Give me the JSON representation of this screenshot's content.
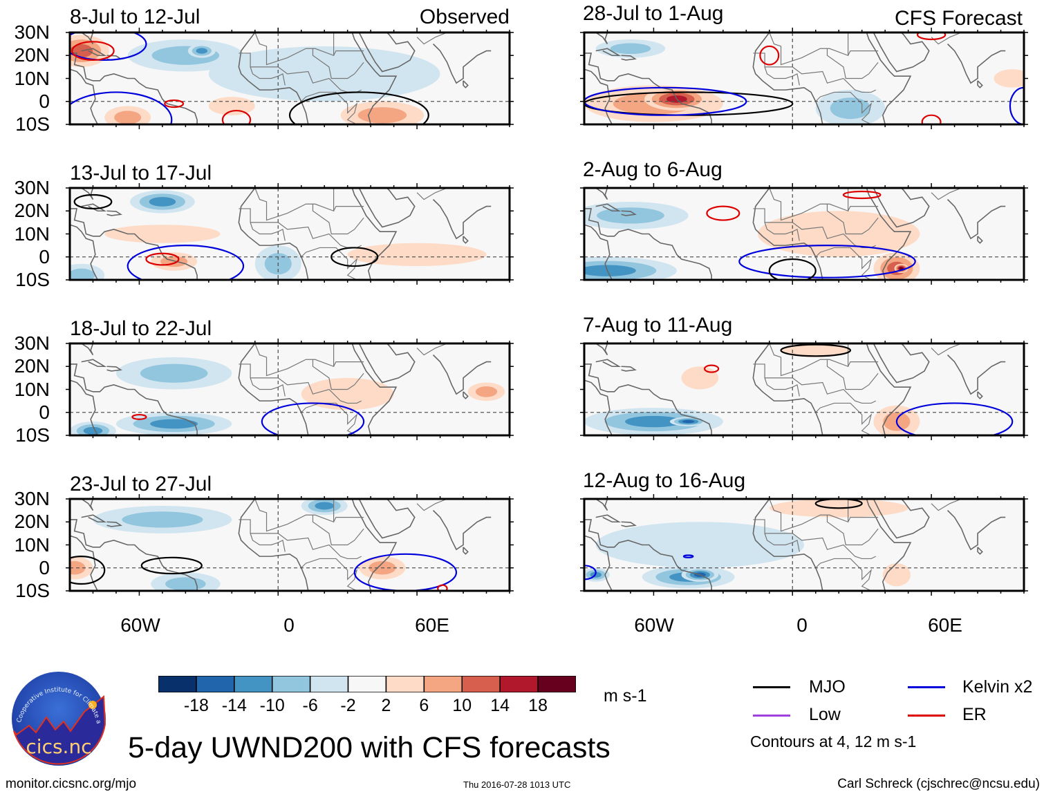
{
  "figure": {
    "main_title": "5-day UWND200 with CFS forecasts",
    "units": "m s-1",
    "source_url": "monitor.cicsnc.org/mjo",
    "timestamp": "Thu 2016-07-28 1013 UTC",
    "author": "Carl Schreck (cjschrec@ncsu.edu)",
    "logo": {
      "ring_text": "Cooperative Institute for Climate and Satellites",
      "name": "cics.nc"
    },
    "contour_note": "Contours at 4, 12 m s-1"
  },
  "chart_data": {
    "type": "heatmap",
    "title": "5-day UWND200 with CFS forecasts",
    "variable": "200-hPa zonal wind anomaly",
    "units": "m s-1",
    "xlabel": "",
    "ylabel": "",
    "x_range": [
      "90W",
      "100E"
    ],
    "y_range": [
      "10S",
      "30N"
    ],
    "x_ticks": [
      "60W",
      "0",
      "60E"
    ],
    "y_ticks": [
      "30N",
      "20N",
      "10N",
      "0",
      "10S"
    ],
    "grid": false,
    "equator_line": "dashed",
    "prime_meridian_line": "dashed",
    "colorbar": {
      "levels": [
        -18,
        -14,
        -10,
        -6,
        -2,
        2,
        6,
        10,
        14,
        18
      ],
      "colors": [
        "#08306b",
        "#2166ac",
        "#4393c3",
        "#92c5de",
        "#d1e5f0",
        "#f7f7f7",
        "#fddbc7",
        "#f4a582",
        "#d6604d",
        "#b2182b",
        "#67001f"
      ],
      "placement": "bottom"
    },
    "legend": {
      "placement": "bottom-right",
      "entries": [
        {
          "label": "MJO",
          "color": "#000000"
        },
        {
          "label": "Kelvin x2",
          "color": "#0000dd"
        },
        {
          "label": "Low",
          "color": "#a040e0"
        },
        {
          "label": "ER",
          "color": "#dd0000"
        }
      ]
    },
    "contour_levels": [
      4,
      12
    ],
    "columns": [
      {
        "tag": "Observed",
        "panels": [
          "8-Jul to 12-Jul",
          "13-Jul to 17-Jul",
          "18-Jul to 22-Jul",
          "23-Jul to 27-Jul"
        ]
      },
      {
        "tag": "CFS Forecast",
        "panels": [
          "28-Jul to 1-Aug",
          "2-Aug to 6-Aug",
          "7-Aug to 11-Aug",
          "12-Aug to 16-Aug"
        ]
      }
    ],
    "panels": [
      {
        "period": "8-Jul to 12-Jul",
        "source": "Observed",
        "anomalies": [
          {
            "lon": -85,
            "lat": 22,
            "rlon": 12,
            "rlat": 7,
            "value": 12
          },
          {
            "lon": -40,
            "lat": 20,
            "rlon": 25,
            "rlat": 7,
            "value": -8
          },
          {
            "lon": -33,
            "lat": 22,
            "rlon": 6,
            "rlat": 3,
            "value": -12
          },
          {
            "lon": -65,
            "lat": -7,
            "rlon": 10,
            "rlat": 5,
            "value": 7
          },
          {
            "lon": 45,
            "lat": -6,
            "rlon": 18,
            "rlat": 6,
            "value": 7
          },
          {
            "lon": 20,
            "lat": 12,
            "rlon": 50,
            "rlat": 12,
            "value": -3
          },
          {
            "lon": -20,
            "lat": -2,
            "rlon": 10,
            "rlat": 4,
            "value": 3
          }
        ],
        "contours": [
          {
            "wave": "Kelvin x2",
            "lon": -75,
            "lat": 25,
            "rlon": 18,
            "rlat": 7
          },
          {
            "wave": "Kelvin x2",
            "lon": -70,
            "lat": -8,
            "rlon": 24,
            "rlat": 12
          },
          {
            "wave": "ER",
            "lon": -80,
            "lat": 22,
            "rlon": 9,
            "rlat": 4
          },
          {
            "wave": "ER",
            "lon": -45,
            "lat": -1,
            "rlon": 4,
            "rlat": 1.5
          },
          {
            "wave": "ER",
            "lon": -18,
            "lat": -8,
            "rlon": 6,
            "rlat": 4
          },
          {
            "wave": "MJO",
            "lon": 35,
            "lat": -6,
            "rlon": 30,
            "rlat": 10
          }
        ]
      },
      {
        "period": "13-Jul to 17-Jul",
        "source": "Observed",
        "anomalies": [
          {
            "lon": -50,
            "lat": 24,
            "rlon": 14,
            "rlat": 5,
            "value": -11
          },
          {
            "lon": -45,
            "lat": -2,
            "rlon": 10,
            "rlat": 4,
            "value": 9
          },
          {
            "lon": -85,
            "lat": -8,
            "rlon": 10,
            "rlat": 5,
            "value": -8
          },
          {
            "lon": 0,
            "lat": -3,
            "rlon": 10,
            "rlat": 8,
            "value": -6
          },
          {
            "lon": 60,
            "lat": 1,
            "rlon": 30,
            "rlat": 5,
            "value": 4
          },
          {
            "lon": -50,
            "lat": 10,
            "rlon": 25,
            "rlat": 4,
            "value": 3
          }
        ],
        "contours": [
          {
            "wave": "MJO",
            "lon": -80,
            "lat": 24,
            "rlon": 8,
            "rlat": 3
          },
          {
            "wave": "Kelvin x2",
            "lon": -40,
            "lat": -4,
            "rlon": 25,
            "rlat": 9
          },
          {
            "wave": "ER",
            "lon": -50,
            "lat": -1,
            "rlon": 7,
            "rlat": 2.5
          },
          {
            "wave": "MJO",
            "lon": 33,
            "lat": 0,
            "rlon": 10,
            "rlat": 4
          }
        ]
      },
      {
        "period": "18-Jul to 22-Jul",
        "source": "Observed",
        "anomalies": [
          {
            "lon": -45,
            "lat": 17,
            "rlon": 25,
            "rlat": 7,
            "value": -6
          },
          {
            "lon": -45,
            "lat": -5,
            "rlon": 25,
            "rlat": 5,
            "value": -10
          },
          {
            "lon": -80,
            "lat": -8,
            "rlon": 10,
            "rlat": 4,
            "value": -12
          },
          {
            "lon": 30,
            "lat": 8,
            "rlon": 20,
            "rlat": 7,
            "value": 3
          },
          {
            "lon": 90,
            "lat": 9,
            "rlon": 8,
            "rlat": 4,
            "value": 6
          }
        ],
        "contours": [
          {
            "wave": "ER",
            "lon": -60,
            "lat": -2,
            "rlon": 3,
            "rlat": 1
          },
          {
            "wave": "Kelvin x2",
            "lon": 15,
            "lat": -4,
            "rlon": 22,
            "rlat": 8
          }
        ]
      },
      {
        "period": "23-Jul to 27-Jul",
        "source": "Observed",
        "anomalies": [
          {
            "lon": -88,
            "lat": 0,
            "rlon": 8,
            "rlat": 5,
            "value": 8
          },
          {
            "lon": -50,
            "lat": 21,
            "rlon": 30,
            "rlat": 6,
            "value": -7
          },
          {
            "lon": -40,
            "lat": -7,
            "rlon": 15,
            "rlat": 5,
            "value": -9
          },
          {
            "lon": 45,
            "lat": 0,
            "rlon": 10,
            "rlat": 5,
            "value": 7
          },
          {
            "lon": 20,
            "lat": 27,
            "rlon": 10,
            "rlat": 4,
            "value": -10
          }
        ],
        "contours": [
          {
            "wave": "MJO",
            "lon": -85,
            "lat": -1,
            "rlon": 10,
            "rlat": 6
          },
          {
            "wave": "MJO",
            "lon": -46,
            "lat": 1,
            "rlon": 13,
            "rlat": 3.5
          },
          {
            "wave": "Kelvin x2",
            "lon": 55,
            "lat": -2,
            "rlon": 22,
            "rlat": 8
          },
          {
            "wave": "ER",
            "lon": 71,
            "lat": -9,
            "rlon": 2,
            "rlat": 1.5
          }
        ]
      },
      {
        "period": "28-Jul to 1-Aug",
        "source": "CFS Forecast",
        "anomalies": [
          {
            "lon": -60,
            "lat": -1,
            "rlon": 30,
            "rlat": 8,
            "value": 9
          },
          {
            "lon": -50,
            "lat": 1,
            "rlon": 14,
            "rlat": 5,
            "value": 15
          },
          {
            "lon": -70,
            "lat": 23,
            "rlon": 15,
            "rlat": 4,
            "value": -9
          },
          {
            "lon": 25,
            "lat": -3,
            "rlon": 15,
            "rlat": 8,
            "value": -6
          },
          {
            "lon": 95,
            "lat": 10,
            "rlon": 8,
            "rlat": 4,
            "value": 5
          }
        ],
        "contours": [
          {
            "wave": "MJO",
            "lon": -45,
            "lat": -1,
            "rlon": 45,
            "rlat": 5
          },
          {
            "wave": "Kelvin x2",
            "lon": -55,
            "lat": 0,
            "rlon": 35,
            "rlat": 6
          },
          {
            "wave": "ER",
            "lon": -10,
            "lat": 20,
            "rlon": 4,
            "rlat": 4
          },
          {
            "wave": "ER",
            "lon": 60,
            "lat": -9,
            "rlon": 4,
            "rlat": 3
          },
          {
            "wave": "ER",
            "lon": 60,
            "lat": 29,
            "rlon": 6,
            "rlat": 2
          },
          {
            "wave": "Kelvin x2",
            "lon": 100,
            "lat": -2,
            "rlon": 6,
            "rlat": 8
          }
        ]
      },
      {
        "period": "2-Aug to 6-Aug",
        "source": "CFS Forecast",
        "anomalies": [
          {
            "lon": -80,
            "lat": -6,
            "rlon": 30,
            "rlat": 6,
            "value": -12
          },
          {
            "lon": -70,
            "lat": 18,
            "rlon": 25,
            "rlat": 6,
            "value": -6
          },
          {
            "lon": 45,
            "lat": -5,
            "rlon": 10,
            "rlat": 7,
            "value": 12
          },
          {
            "lon": 47,
            "lat": -5,
            "rlon": 3,
            "rlat": 2,
            "value": 18
          },
          {
            "lon": 20,
            "lat": 10,
            "rlon": 35,
            "rlat": 10,
            "value": 3
          }
        ],
        "contours": [
          {
            "wave": "ER",
            "lon": -30,
            "lat": 19,
            "rlon": 7,
            "rlat": 3
          },
          {
            "wave": "ER",
            "lon": 30,
            "lat": 27,
            "rlon": 8,
            "rlat": 1.5
          },
          {
            "wave": "Kelvin x2",
            "lon": 15,
            "lat": -2,
            "rlon": 38,
            "rlat": 7
          },
          {
            "wave": "MJO",
            "lon": 0,
            "lat": -6,
            "rlon": 10,
            "rlat": 5
          }
        ]
      },
      {
        "period": "7-Aug to 11-Aug",
        "source": "CFS Forecast",
        "anomalies": [
          {
            "lon": -60,
            "lat": -4,
            "rlon": 30,
            "rlat": 6,
            "value": -11
          },
          {
            "lon": -45,
            "lat": -4,
            "rlon": 8,
            "rlat": 2,
            "value": -15
          },
          {
            "lon": -40,
            "lat": 15,
            "rlon": 8,
            "rlat": 5,
            "value": 3
          },
          {
            "lon": 45,
            "lat": -4,
            "rlon": 10,
            "rlat": 7,
            "value": 7
          },
          {
            "lon": 10,
            "lat": 27,
            "rlon": 15,
            "rlat": 3,
            "value": 4
          }
        ],
        "contours": [
          {
            "wave": "MJO",
            "lon": 10,
            "lat": 27,
            "rlon": 15,
            "rlat": 2.5
          },
          {
            "wave": "ER",
            "lon": -35,
            "lat": 19,
            "rlon": 3,
            "rlat": 1.5
          },
          {
            "wave": "Kelvin x2",
            "lon": 70,
            "lat": -4,
            "rlon": 25,
            "rlat": 8
          }
        ]
      },
      {
        "period": "12-Aug to 16-Aug",
        "source": "CFS Forecast",
        "anomalies": [
          {
            "lon": -45,
            "lat": -4,
            "rlon": 20,
            "rlat": 5,
            "value": -11
          },
          {
            "lon": -40,
            "lat": -3,
            "rlon": 8,
            "rlat": 3,
            "value": -15
          },
          {
            "lon": -40,
            "lat": 10,
            "rlon": 45,
            "rlat": 10,
            "value": -5
          },
          {
            "lon": -85,
            "lat": -3,
            "rlon": 6,
            "rlat": 3,
            "value": -11
          },
          {
            "lon": 20,
            "lat": 26,
            "rlon": 30,
            "rlat": 4,
            "value": 3
          },
          {
            "lon": 45,
            "lat": -3,
            "rlon": 6,
            "rlat": 5,
            "value": 3
          }
        ],
        "contours": [
          {
            "wave": "MJO",
            "lon": 20,
            "lat": 28,
            "rlon": 10,
            "rlat": 2
          },
          {
            "wave": "Kelvin x2",
            "lon": -90,
            "lat": -2,
            "rlon": 5,
            "rlat": 3
          },
          {
            "wave": "Kelvin x2",
            "lon": -45,
            "lat": 5,
            "rlon": 2,
            "rlat": 0.5
          }
        ]
      }
    ]
  }
}
